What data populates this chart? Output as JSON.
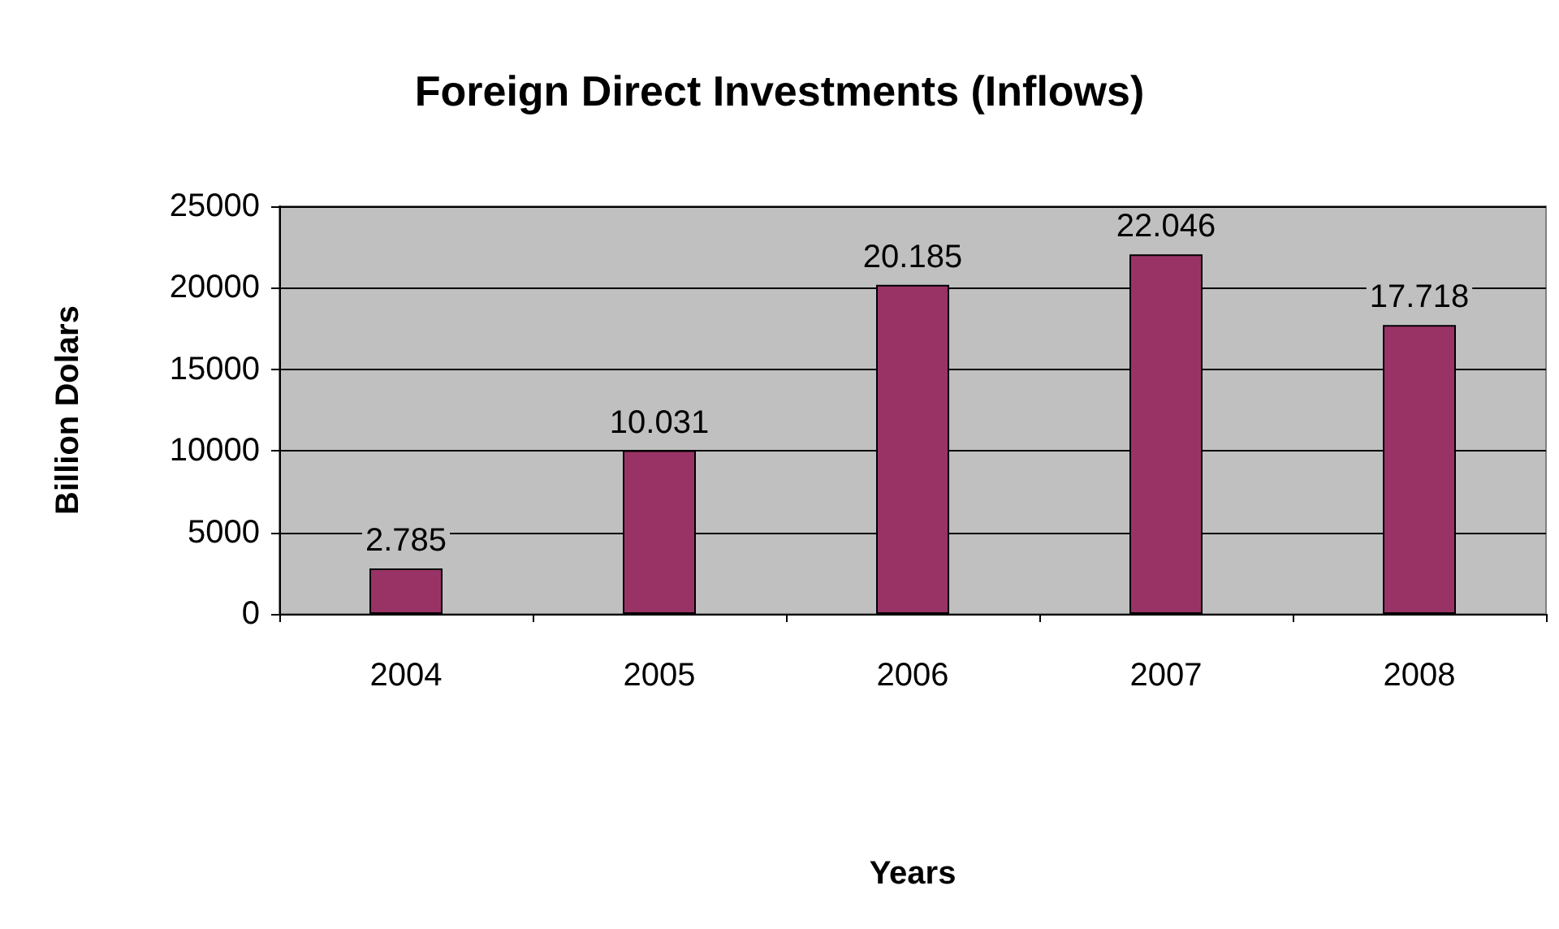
{
  "chart_data": {
    "type": "bar",
    "title": "Foreign Direct Investments (Inflows)",
    "xlabel": "Years",
    "ylabel": "Billion Dolars",
    "categories": [
      "2004",
      "2005",
      "2006",
      "2007",
      "2008"
    ],
    "values": [
      2785,
      10031,
      20185,
      22046,
      17718
    ],
    "value_labels": [
      "2.785",
      "10.031",
      "20.185",
      "22.046",
      "17.718"
    ],
    "color": "#993366",
    "ylim": [
      0,
      25000
    ],
    "yticks": [
      0,
      5000,
      10000,
      15000,
      20000,
      25000
    ],
    "grid": "y"
  }
}
